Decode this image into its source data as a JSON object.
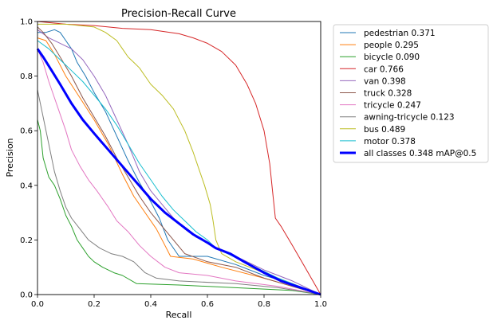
{
  "chart_data": {
    "type": "line",
    "title": "Precision-Recall Curve",
    "xlabel": "Recall",
    "ylabel": "Precision",
    "xlim": [
      0,
      1
    ],
    "ylim": [
      0,
      1
    ],
    "xticks": [
      "0.0",
      "0.2",
      "0.4",
      "0.6",
      "0.8",
      "1.0"
    ],
    "yticks": [
      "0.0",
      "0.2",
      "0.4",
      "0.6",
      "0.8",
      "1.0"
    ],
    "grid": false,
    "legend_position": "outside-right",
    "series": [
      {
        "name": "pedestrian 0.371",
        "color": "#1f77b4",
        "width": 1,
        "points": [
          [
            0,
            0.96
          ],
          [
            0.03,
            0.96
          ],
          [
            0.06,
            0.97
          ],
          [
            0.08,
            0.96
          ],
          [
            0.1,
            0.93
          ],
          [
            0.12,
            0.9
          ],
          [
            0.14,
            0.85
          ],
          [
            0.17,
            0.8
          ],
          [
            0.2,
            0.74
          ],
          [
            0.24,
            0.67
          ],
          [
            0.28,
            0.58
          ],
          [
            0.32,
            0.49
          ],
          [
            0.36,
            0.41
          ],
          [
            0.4,
            0.34
          ],
          [
            0.43,
            0.28
          ],
          [
            0.46,
            0.2
          ],
          [
            0.5,
            0.14
          ],
          [
            0.55,
            0.14
          ],
          [
            0.6,
            0.14
          ],
          [
            0.7,
            0.11
          ],
          [
            0.8,
            0.07
          ],
          [
            0.9,
            0.04
          ],
          [
            1,
            0
          ]
        ]
      },
      {
        "name": "people 0.295",
        "color": "#ff7f0e",
        "width": 1,
        "points": [
          [
            0,
            0.94
          ],
          [
            0.03,
            0.93
          ],
          [
            0.06,
            0.88
          ],
          [
            0.1,
            0.8
          ],
          [
            0.15,
            0.72
          ],
          [
            0.2,
            0.64
          ],
          [
            0.25,
            0.55
          ],
          [
            0.3,
            0.44
          ],
          [
            0.34,
            0.36
          ],
          [
            0.38,
            0.3
          ],
          [
            0.42,
            0.24
          ],
          [
            0.45,
            0.18
          ],
          [
            0.47,
            0.14
          ],
          [
            0.55,
            0.13
          ],
          [
            0.65,
            0.1
          ],
          [
            0.8,
            0.06
          ],
          [
            0.9,
            0.03
          ],
          [
            1,
            0
          ]
        ]
      },
      {
        "name": "bicycle 0.090",
        "color": "#2ca02c",
        "width": 1,
        "points": [
          [
            0,
            0.64
          ],
          [
            0.01,
            0.6
          ],
          [
            0.02,
            0.5
          ],
          [
            0.04,
            0.43
          ],
          [
            0.06,
            0.4
          ],
          [
            0.08,
            0.35
          ],
          [
            0.1,
            0.29
          ],
          [
            0.12,
            0.25
          ],
          [
            0.14,
            0.2
          ],
          [
            0.16,
            0.17
          ],
          [
            0.18,
            0.14
          ],
          [
            0.2,
            0.12
          ],
          [
            0.23,
            0.1
          ],
          [
            0.27,
            0.08
          ],
          [
            0.3,
            0.07
          ],
          [
            0.35,
            0.04
          ],
          [
            0.5,
            0.035
          ],
          [
            0.7,
            0.025
          ],
          [
            0.9,
            0.015
          ],
          [
            1,
            0
          ]
        ]
      },
      {
        "name": "car 0.766",
        "color": "#d62728",
        "width": 1,
        "points": [
          [
            0,
            1.0
          ],
          [
            0.1,
            0.99
          ],
          [
            0.2,
            0.985
          ],
          [
            0.3,
            0.975
          ],
          [
            0.4,
            0.97
          ],
          [
            0.5,
            0.955
          ],
          [
            0.55,
            0.94
          ],
          [
            0.6,
            0.92
          ],
          [
            0.65,
            0.89
          ],
          [
            0.7,
            0.84
          ],
          [
            0.74,
            0.77
          ],
          [
            0.77,
            0.7
          ],
          [
            0.8,
            0.6
          ],
          [
            0.82,
            0.48
          ],
          [
            0.83,
            0.38
          ],
          [
            0.84,
            0.28
          ],
          [
            0.86,
            0.25
          ],
          [
            0.9,
            0.18
          ],
          [
            0.95,
            0.09
          ],
          [
            1,
            0
          ]
        ]
      },
      {
        "name": "van 0.398",
        "color": "#9467bd",
        "width": 1,
        "points": [
          [
            0,
            0.97
          ],
          [
            0.04,
            0.94
          ],
          [
            0.08,
            0.92
          ],
          [
            0.12,
            0.9
          ],
          [
            0.16,
            0.86
          ],
          [
            0.2,
            0.8
          ],
          [
            0.24,
            0.73
          ],
          [
            0.28,
            0.64
          ],
          [
            0.32,
            0.55
          ],
          [
            0.36,
            0.45
          ],
          [
            0.4,
            0.38
          ],
          [
            0.44,
            0.33
          ],
          [
            0.48,
            0.28
          ],
          [
            0.52,
            0.24
          ],
          [
            0.56,
            0.21
          ],
          [
            0.6,
            0.19
          ],
          [
            0.65,
            0.16
          ],
          [
            0.7,
            0.14
          ],
          [
            0.8,
            0.09
          ],
          [
            0.9,
            0.05
          ],
          [
            1,
            0
          ]
        ]
      },
      {
        "name": "truck 0.328",
        "color": "#8c564b",
        "width": 1,
        "points": [
          [
            0,
            0.98
          ],
          [
            0.02,
            0.96
          ],
          [
            0.05,
            0.92
          ],
          [
            0.08,
            0.87
          ],
          [
            0.12,
            0.8
          ],
          [
            0.16,
            0.72
          ],
          [
            0.2,
            0.65
          ],
          [
            0.24,
            0.58
          ],
          [
            0.28,
            0.5
          ],
          [
            0.32,
            0.43
          ],
          [
            0.36,
            0.36
          ],
          [
            0.4,
            0.3
          ],
          [
            0.44,
            0.25
          ],
          [
            0.48,
            0.2
          ],
          [
            0.52,
            0.15
          ],
          [
            0.6,
            0.12
          ],
          [
            0.7,
            0.1
          ],
          [
            0.8,
            0.06
          ],
          [
            0.9,
            0.03
          ],
          [
            1,
            0
          ]
        ]
      },
      {
        "name": "tricycle 0.247",
        "color": "#e377c2",
        "width": 1,
        "points": [
          [
            0,
            0.9
          ],
          [
            0.02,
            0.85
          ],
          [
            0.04,
            0.78
          ],
          [
            0.06,
            0.72
          ],
          [
            0.08,
            0.66
          ],
          [
            0.1,
            0.6
          ],
          [
            0.12,
            0.53
          ],
          [
            0.15,
            0.47
          ],
          [
            0.18,
            0.42
          ],
          [
            0.21,
            0.38
          ],
          [
            0.25,
            0.32
          ],
          [
            0.28,
            0.27
          ],
          [
            0.32,
            0.23
          ],
          [
            0.36,
            0.18
          ],
          [
            0.4,
            0.14
          ],
          [
            0.45,
            0.1
          ],
          [
            0.5,
            0.08
          ],
          [
            0.6,
            0.07
          ],
          [
            0.7,
            0.05
          ],
          [
            0.85,
            0.03
          ],
          [
            1,
            0
          ]
        ]
      },
      {
        "name": "awning-tricycle 0.123",
        "color": "#7f7f7f",
        "width": 1,
        "points": [
          [
            0,
            0.75
          ],
          [
            0.02,
            0.65
          ],
          [
            0.04,
            0.55
          ],
          [
            0.06,
            0.45
          ],
          [
            0.08,
            0.38
          ],
          [
            0.1,
            0.32
          ],
          [
            0.12,
            0.28
          ],
          [
            0.15,
            0.24
          ],
          [
            0.18,
            0.2
          ],
          [
            0.22,
            0.17
          ],
          [
            0.26,
            0.15
          ],
          [
            0.3,
            0.14
          ],
          [
            0.34,
            0.12
          ],
          [
            0.38,
            0.08
          ],
          [
            0.42,
            0.06
          ],
          [
            0.5,
            0.05
          ],
          [
            0.7,
            0.04
          ],
          [
            0.85,
            0.025
          ],
          [
            1,
            0
          ]
        ]
      },
      {
        "name": "bus 0.489",
        "color": "#bcbd22",
        "width": 1,
        "points": [
          [
            0,
            0.99
          ],
          [
            0.1,
            0.99
          ],
          [
            0.2,
            0.98
          ],
          [
            0.24,
            0.96
          ],
          [
            0.28,
            0.93
          ],
          [
            0.3,
            0.9
          ],
          [
            0.32,
            0.87
          ],
          [
            0.34,
            0.85
          ],
          [
            0.36,
            0.83
          ],
          [
            0.38,
            0.8
          ],
          [
            0.4,
            0.77
          ],
          [
            0.44,
            0.73
          ],
          [
            0.48,
            0.68
          ],
          [
            0.52,
            0.6
          ],
          [
            0.55,
            0.52
          ],
          [
            0.57,
            0.46
          ],
          [
            0.59,
            0.4
          ],
          [
            0.61,
            0.33
          ],
          [
            0.62,
            0.27
          ],
          [
            0.63,
            0.2
          ],
          [
            0.65,
            0.15
          ],
          [
            0.7,
            0.12
          ],
          [
            0.8,
            0.08
          ],
          [
            0.9,
            0.04
          ],
          [
            1,
            0
          ]
        ]
      },
      {
        "name": "motor 0.378",
        "color": "#17becf",
        "width": 1,
        "points": [
          [
            0,
            0.93
          ],
          [
            0.04,
            0.9
          ],
          [
            0.08,
            0.86
          ],
          [
            0.12,
            0.82
          ],
          [
            0.16,
            0.78
          ],
          [
            0.2,
            0.73
          ],
          [
            0.24,
            0.68
          ],
          [
            0.28,
            0.62
          ],
          [
            0.32,
            0.55
          ],
          [
            0.36,
            0.48
          ],
          [
            0.4,
            0.42
          ],
          [
            0.44,
            0.36
          ],
          [
            0.48,
            0.31
          ],
          [
            0.52,
            0.27
          ],
          [
            0.56,
            0.23
          ],
          [
            0.6,
            0.2
          ],
          [
            0.63,
            0.17
          ],
          [
            0.67,
            0.15
          ],
          [
            0.75,
            0.11
          ],
          [
            0.85,
            0.06
          ],
          [
            1,
            0
          ]
        ]
      },
      {
        "name": "all classes 0.348 mAP@0.5",
        "color": "#0000ff",
        "width": 3,
        "points": [
          [
            0,
            0.9
          ],
          [
            0.02,
            0.87
          ],
          [
            0.05,
            0.82
          ],
          [
            0.08,
            0.77
          ],
          [
            0.12,
            0.7
          ],
          [
            0.16,
            0.64
          ],
          [
            0.2,
            0.59
          ],
          [
            0.25,
            0.53
          ],
          [
            0.3,
            0.47
          ],
          [
            0.35,
            0.41
          ],
          [
            0.4,
            0.35
          ],
          [
            0.45,
            0.3
          ],
          [
            0.5,
            0.26
          ],
          [
            0.55,
            0.22
          ],
          [
            0.6,
            0.19
          ],
          [
            0.63,
            0.17
          ],
          [
            0.68,
            0.15
          ],
          [
            0.73,
            0.12
          ],
          [
            0.8,
            0.08
          ],
          [
            0.86,
            0.05
          ],
          [
            0.93,
            0.025
          ],
          [
            1,
            0
          ]
        ]
      }
    ]
  }
}
